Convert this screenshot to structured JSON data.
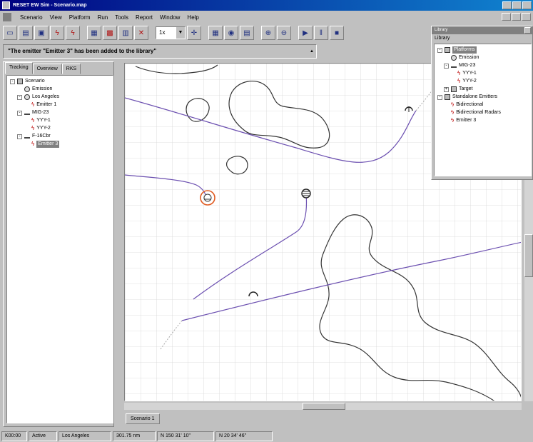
{
  "window": {
    "title": "RESET EW Sim - Scenario.map"
  },
  "menubar": {
    "items": [
      "Scenario",
      "View",
      "Platform",
      "Run",
      "Tools",
      "Report",
      "Window",
      "Help"
    ]
  },
  "toolbar": {
    "zoom_value": "1x"
  },
  "notice": {
    "text": "\"The emitter \"Emitter 3\" has been added to the library\""
  },
  "left_panel": {
    "tabs": [
      "Tracking",
      "Overview",
      "RKS"
    ],
    "tree": [
      {
        "label": "Scenario",
        "icon": "scenario-icon",
        "depth": 0,
        "expander": "-"
      },
      {
        "label": "Emission",
        "icon": "emitter-icon",
        "depth": 1,
        "expander": ""
      },
      {
        "label": "Los Angeles",
        "icon": "ship-icon",
        "depth": 1,
        "expander": "-"
      },
      {
        "label": "Emitter 1",
        "icon": "wave-icon",
        "depth": 2,
        "expander": ""
      },
      {
        "label": "MIG-23",
        "icon": "plane-icon",
        "depth": 1,
        "expander": "-"
      },
      {
        "label": "YYY-1",
        "icon": "wave-icon",
        "depth": 2,
        "expander": ""
      },
      {
        "label": "YYY-2",
        "icon": "wave-icon",
        "depth": 2,
        "expander": ""
      },
      {
        "label": "F-16Cbr",
        "icon": "plane-icon",
        "depth": 1,
        "expander": "-"
      },
      {
        "label": "Emitter 3",
        "icon": "wave-icon",
        "depth": 2,
        "expander": "",
        "selected": true
      }
    ]
  },
  "map": {
    "tab_label": "Scenario 1"
  },
  "library": {
    "title": "Library",
    "header": "Library",
    "tree": [
      {
        "label": "Platforms",
        "icon": "platform-icon",
        "depth": 0,
        "expander": "-",
        "selected": true
      },
      {
        "label": "Emission",
        "icon": "emitter-icon",
        "depth": 1,
        "expander": ""
      },
      {
        "label": "MIG-23",
        "icon": "plane-icon",
        "depth": 1,
        "expander": "-"
      },
      {
        "label": "YYY-1",
        "icon": "wave-icon",
        "depth": 2,
        "expander": ""
      },
      {
        "label": "YYY-2",
        "icon": "wave-icon",
        "depth": 2,
        "expander": ""
      },
      {
        "label": "Target",
        "icon": "target-icon",
        "depth": 1,
        "expander": "+"
      },
      {
        "label": "Standalone Emitters",
        "icon": "emitters-group-icon",
        "depth": 0,
        "expander": "-"
      },
      {
        "label": "Bidirectional",
        "icon": "wave-icon",
        "depth": 1,
        "expander": ""
      },
      {
        "label": "Bidirectional Radars",
        "icon": "wave-icon",
        "depth": 1,
        "expander": ""
      },
      {
        "label": "Emitter 3",
        "icon": "wave-icon",
        "depth": 1,
        "expander": ""
      }
    ]
  },
  "statusbar": {
    "cells": [
      "K00:00",
      "Active",
      "Los Angeles",
      "301.75 nm",
      "N 150 31' 10\"",
      "N 20 34' 46\""
    ]
  },
  "colors": {
    "track_purple": "#6b4fb0",
    "coast": "#333333",
    "selected_ring": "#e05a20",
    "title_bar": "#000080"
  }
}
